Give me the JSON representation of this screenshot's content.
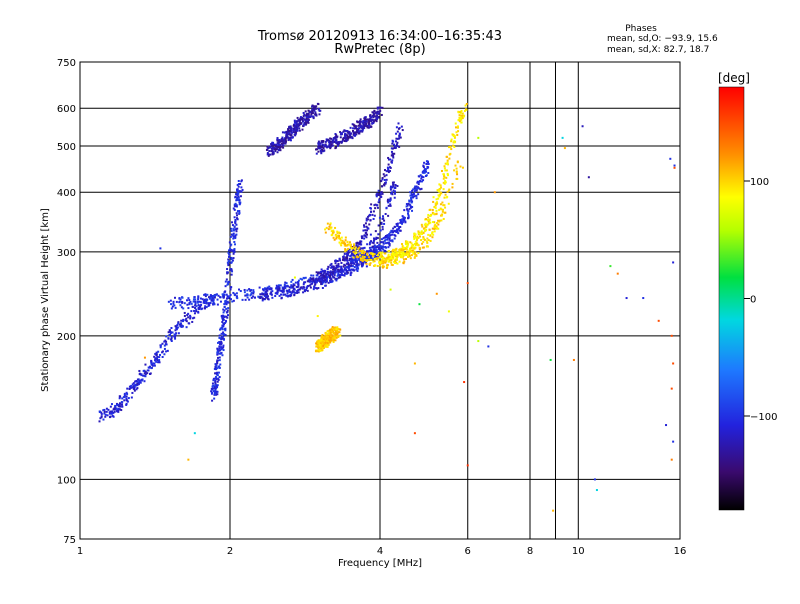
{
  "chart_data": {
    "type": "scatter",
    "title": "Tromsø 20120913 16:34:00–16:35:43",
    "subtitle": "RwPretec (8p)",
    "xlabel": "Frequency [MHz]",
    "ylabel": "Stationary phase Virtual Height [km]",
    "x_scale": "log",
    "y_scale": "log",
    "xlim": [
      1,
      16
    ],
    "ylim": [
      75,
      750
    ],
    "x_ticks": [
      1,
      2,
      4,
      6,
      8,
      10,
      16
    ],
    "x_tick_labels": [
      "1",
      "2",
      "4",
      "6",
      "8",
      "10",
      "16"
    ],
    "x_minor_grid": [
      9
    ],
    "y_ticks": [
      75,
      100,
      200,
      300,
      400,
      500,
      600,
      750
    ],
    "y_tick_labels": [
      "75",
      "100",
      "200",
      "300",
      "400",
      "500",
      "600",
      "750"
    ],
    "grid": true,
    "stats": {
      "title": "Phases",
      "o_line": "mean, sd,O: −93.9, 15.6",
      "x_line": "mean, sd,X:  82.7, 18.7"
    },
    "colorbar": {
      "label": "[deg]",
      "range": [
        -180,
        180
      ],
      "ticks": [
        100,
        0,
        -100
      ],
      "tick_labels": [
        "100",
        "0",
        "−100"
      ]
    },
    "traces": [
      {
        "phase": -110,
        "x_range": [
          1.1,
          1.85
        ],
        "y": [
          135,
          140,
          150,
          165,
          180,
          200,
          215,
          230,
          240
        ]
      },
      {
        "phase": -105,
        "x_range": [
          1.85,
          2.1
        ],
        "y": [
          150,
          170,
          200,
          240,
          300,
          360,
          420
        ]
      },
      {
        "phase": -100,
        "x_range": [
          1.5,
          4.2
        ],
        "y": [
          233,
          236,
          240,
          245,
          250,
          258,
          268,
          285,
          320
        ]
      },
      {
        "phase": -115,
        "x_range": [
          2.3,
          4.3
        ],
        "y": [
          243,
          246,
          250,
          256,
          262,
          275,
          290,
          330,
          420
        ]
      },
      {
        "phase": -120,
        "x_range": [
          3.0,
          4.4
        ],
        "y": [
          265,
          272,
          280,
          292,
          310,
          350,
          400,
          460,
          550
        ]
      },
      {
        "phase": -105,
        "x_range": [
          3.5,
          5.0
        ],
        "y": [
          285,
          290,
          300,
          320,
          345,
          400,
          460
        ]
      },
      {
        "phase": -125,
        "x_range": [
          2.4,
          3.0
        ],
        "y": [
          490,
          500,
          520,
          540,
          560,
          580,
          600
        ]
      },
      {
        "phase": -125,
        "x_range": [
          3.0,
          4.0
        ],
        "y": [
          495,
          505,
          520,
          540,
          560,
          590
        ]
      },
      {
        "phase": 100,
        "x_range": [
          3.1,
          5.8
        ],
        "y": [
          340,
          320,
          300,
          290,
          285,
          290,
          300,
          320,
          380,
          460
        ]
      },
      {
        "phase": 95,
        "x_range": [
          4.0,
          5.9
        ],
        "y": [
          290,
          295,
          300,
          310,
          330,
          360,
          420,
          520,
          600
        ]
      },
      {
        "phase": 105,
        "x_range": [
          3.0,
          3.3
        ],
        "y": [
          190,
          195,
          200,
          205
        ]
      }
    ],
    "scatter_points": [
      [
        1.45,
        305,
        -100
      ],
      [
        1.65,
        110,
        110
      ],
      [
        1.7,
        125,
        -20
      ],
      [
        1.35,
        180,
        120
      ],
      [
        2.7,
        265,
        80
      ],
      [
        3.0,
        220,
        90
      ],
      [
        4.2,
        250,
        70
      ],
      [
        4.7,
        175,
        110
      ],
      [
        4.7,
        125,
        150
      ],
      [
        4.8,
        233,
        20
      ],
      [
        5.2,
        245,
        120
      ],
      [
        5.5,
        225,
        80
      ],
      [
        5.9,
        160,
        160
      ],
      [
        6.0,
        258,
        150
      ],
      [
        6.0,
        107,
        160
      ],
      [
        6.3,
        195,
        60
      ],
      [
        6.6,
        190,
        -100
      ],
      [
        6.8,
        400,
        120
      ],
      [
        6.3,
        520,
        60
      ],
      [
        9.3,
        520,
        -20
      ],
      [
        9.4,
        495,
        110
      ],
      [
        8.8,
        178,
        20
      ],
      [
        8.9,
        86,
        110
      ],
      [
        9.8,
        178,
        130
      ],
      [
        10.2,
        550,
        -120
      ],
      [
        10.5,
        430,
        -130
      ],
      [
        10.8,
        100,
        -100
      ],
      [
        10.9,
        95,
        -20
      ],
      [
        11.6,
        280,
        30
      ],
      [
        12.0,
        270,
        130
      ],
      [
        12.5,
        240,
        -110
      ],
      [
        13.5,
        240,
        -100
      ],
      [
        14.5,
        215,
        150
      ],
      [
        15.0,
        130,
        -110
      ],
      [
        15.3,
        470,
        -100
      ],
      [
        15.6,
        455,
        -100
      ],
      [
        15.5,
        285,
        -110
      ],
      [
        15.4,
        200,
        150
      ],
      [
        15.5,
        175,
        150
      ],
      [
        15.4,
        155,
        150
      ],
      [
        15.5,
        120,
        -100
      ],
      [
        15.4,
        110,
        130
      ],
      [
        15.6,
        450,
        150
      ]
    ]
  }
}
